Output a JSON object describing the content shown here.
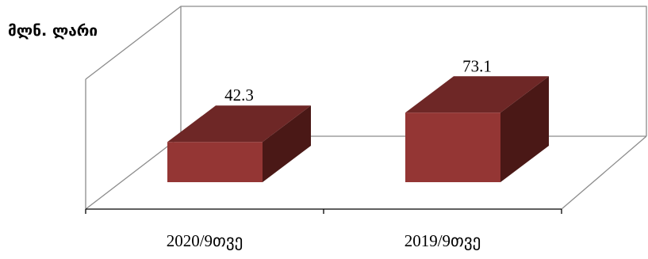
{
  "chart_data": {
    "type": "bar",
    "style": "3d",
    "ylabel": "მლნ. ლარი",
    "categories": [
      "2020/9თვე",
      "2019/9თვე"
    ],
    "values": [
      42.3,
      73.1
    ],
    "value_labels": [
      "42.3",
      "73.1"
    ],
    "ylim": [
      0,
      80
    ],
    "grid": false,
    "colors": {
      "front": "#943634",
      "top": "#6e2726",
      "side": "#4a1816",
      "wall": "#8c8c8c"
    }
  }
}
